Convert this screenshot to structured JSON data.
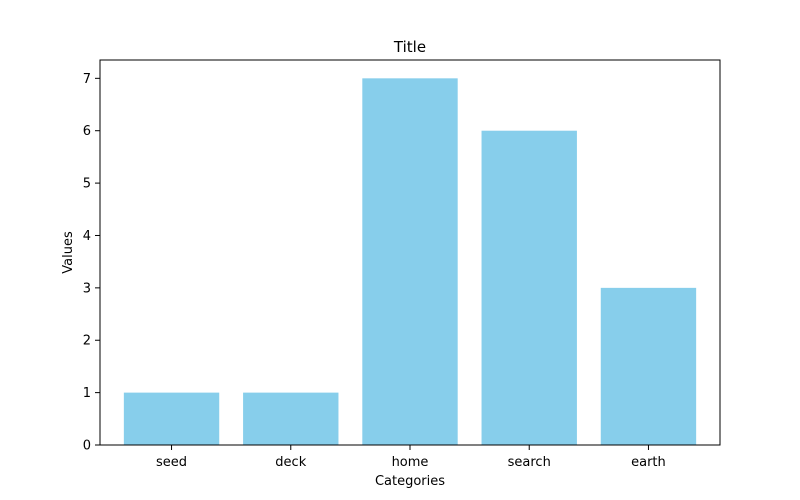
{
  "chart_data": {
    "type": "bar",
    "title": "Title",
    "xlabel": "Categories",
    "ylabel": "Values",
    "categories": [
      "seed",
      "deck",
      "home",
      "search",
      "earth"
    ],
    "values": [
      1,
      1,
      7,
      6,
      3
    ],
    "ylim": [
      0,
      7.35
    ],
    "yticks": [
      0,
      1,
      2,
      3,
      4,
      5,
      6,
      7
    ],
    "bar_color": "#87ceeb",
    "grid": false,
    "legend": "none"
  }
}
